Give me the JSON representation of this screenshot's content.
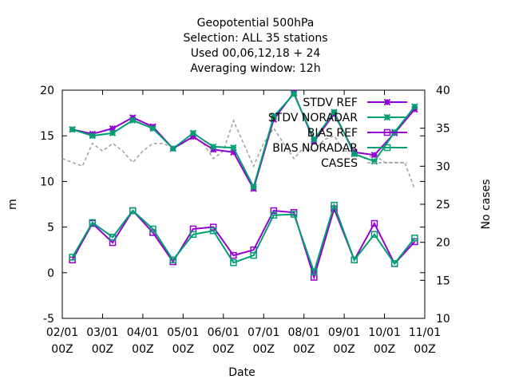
{
  "title_lines": [
    "Geopotential 500hPa",
    "Selection: ALL      35 stations",
    "Used  00,06,12,18 + 24",
    "Averaging window: 12h"
  ],
  "chart_data": {
    "type": "line",
    "xlabel": "Date",
    "ylabel": "m",
    "y2label": "No cases",
    "ylim": [
      -5,
      20
    ],
    "y2lim": [
      10,
      40
    ],
    "y_ticks": [
      "-5",
      "0",
      "5",
      "10",
      "15",
      "20"
    ],
    "y2_ticks": [
      "10",
      "15",
      "20",
      "25",
      "30",
      "35",
      "40"
    ],
    "x_ticks": [
      {
        "top": "02/01",
        "bottom": "00Z",
        "x": 0
      },
      {
        "top": "03/01",
        "bottom": "00Z",
        "x": 1
      },
      {
        "top": "04/01",
        "bottom": "00Z",
        "x": 2
      },
      {
        "top": "05/01",
        "bottom": "00Z",
        "x": 3
      },
      {
        "top": "06/01",
        "bottom": "00Z",
        "x": 4
      },
      {
        "top": "07/01",
        "bottom": "00Z",
        "x": 5
      },
      {
        "top": "08/01",
        "bottom": "00Z",
        "x": 6
      },
      {
        "top": "09/01",
        "bottom": "00Z",
        "x": 7
      },
      {
        "top": "10/01",
        "bottom": "00Z",
        "x": 8
      },
      {
        "top": "11/01",
        "bottom": "00Z",
        "x": 9
      }
    ],
    "x": [
      0.25,
      0.75,
      1.25,
      1.75,
      2.25,
      2.75,
      3.25,
      3.75,
      4.25,
      4.75,
      5.25,
      5.75,
      6.25,
      6.75,
      7.25,
      7.75,
      8.25,
      8.75
    ],
    "series": [
      {
        "name": "STDV REF",
        "axis": "y",
        "color": "#9400d3",
        "marker": "x",
        "dash": "",
        "values": [
          15.7,
          15.2,
          15.8,
          17.0,
          16.0,
          13.6,
          14.9,
          13.5,
          13.2,
          9.2,
          16.8,
          19.7,
          14.4,
          17.4,
          13.2,
          12.9,
          15.3,
          17.9
        ]
      },
      {
        "name": "STDV NORADAR",
        "axis": "y",
        "color": "#009e73",
        "marker": "x",
        "dash": "",
        "values": [
          15.7,
          15.0,
          15.3,
          16.7,
          15.8,
          13.6,
          15.3,
          13.8,
          13.7,
          9.4,
          17.1,
          19.6,
          14.6,
          17.6,
          13.0,
          12.2,
          15.4,
          18.2
        ]
      },
      {
        "name": "BIAS REF",
        "axis": "y",
        "color": "#9400d3",
        "marker": "square",
        "dash": "",
        "values": [
          1.4,
          5.4,
          3.3,
          6.8,
          4.4,
          1.2,
          4.8,
          5.0,
          1.9,
          2.5,
          6.8,
          6.6,
          -0.5,
          7.0,
          1.4,
          5.4,
          1.0,
          3.4
        ]
      },
      {
        "name": "BIAS NORADAR",
        "axis": "y",
        "color": "#009e73",
        "marker": "square",
        "dash": "",
        "values": [
          1.7,
          5.5,
          3.9,
          6.8,
          4.8,
          1.4,
          4.2,
          4.6,
          1.1,
          1.9,
          6.3,
          6.4,
          0.1,
          7.4,
          1.4,
          4.2,
          1.0,
          3.8
        ]
      },
      {
        "name": "CASES",
        "axis": "y2",
        "color": "#a0a0a0",
        "marker": "none",
        "dash": "4,3",
        "x": [
          0.0,
          0.5,
          0.75,
          1.0,
          1.25,
          1.5,
          1.75,
          2.0,
          2.25,
          2.5,
          2.75,
          3.0,
          3.25,
          3.5,
          3.75,
          4.0,
          4.25,
          4.5,
          4.75,
          5.0,
          5.25,
          5.5,
          5.75,
          6.0,
          6.25,
          6.5,
          6.75,
          7.0,
          7.25,
          7.5,
          7.75,
          8.0,
          8.25,
          8.5,
          8.75
        ],
        "values": [
          31,
          30,
          33,
          32,
          33,
          32,
          30.5,
          32,
          33,
          33,
          32.5,
          33,
          34,
          33,
          31,
          32,
          36,
          33,
          30,
          33,
          35,
          33,
          31,
          32.5,
          32,
          33.5,
          34,
          32,
          32,
          31,
          31.5,
          30.5,
          30.5,
          30.5,
          27
        ]
      }
    ]
  }
}
